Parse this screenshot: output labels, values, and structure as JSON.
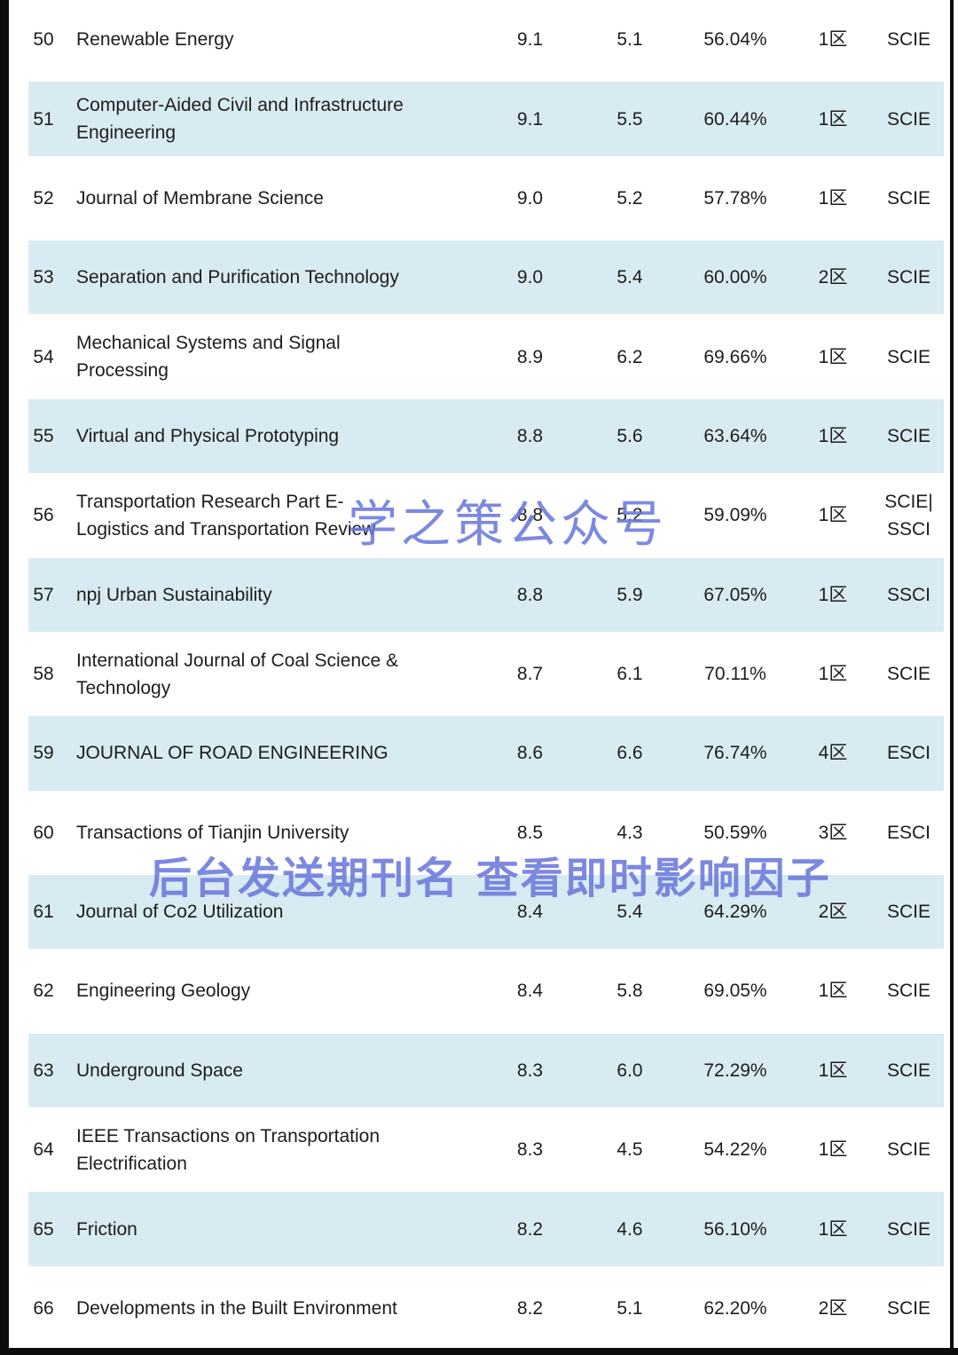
{
  "colors": {
    "row_stripe": "#d9ebf2",
    "watermark_blue": "#6b79dc",
    "border_black": "#0d0d0d",
    "text": "#1d1d1d"
  },
  "watermarks": {
    "center_text": "学之策公众号",
    "bottom_text": "后台发送期刊名 查看即时影响因子"
  },
  "table": {
    "rows": [
      {
        "rank": "50",
        "name": "Renewable Energy",
        "value1": "9.1",
        "value2": "5.1",
        "percent": "56.04%",
        "zone": "1区",
        "index": "SCIE"
      },
      {
        "rank": "51",
        "name": "Computer-Aided Civil and Infrastructure\nEngineering",
        "value1": "9.1",
        "value2": "5.5",
        "percent": "60.44%",
        "zone": "1区",
        "index": "SCIE"
      },
      {
        "rank": "52",
        "name": "Journal of Membrane Science",
        "value1": "9.0",
        "value2": "5.2",
        "percent": "57.78%",
        "zone": "1区",
        "index": "SCIE"
      },
      {
        "rank": "53",
        "name": "Separation and Purification Technology",
        "value1": "9.0",
        "value2": "5.4",
        "percent": "60.00%",
        "zone": "2区",
        "index": "SCIE"
      },
      {
        "rank": "54",
        "name": "Mechanical Systems and Signal\nProcessing",
        "value1": "8.9",
        "value2": "6.2",
        "percent": "69.66%",
        "zone": "1区",
        "index": "SCIE"
      },
      {
        "rank": "55",
        "name": "Virtual and Physical Prototyping",
        "value1": "8.8",
        "value2": "5.6",
        "percent": "63.64%",
        "zone": "1区",
        "index": "SCIE"
      },
      {
        "rank": "56",
        "name": "Transportation Research Part E-\nLogistics and Transportation Review",
        "value1": "8.8",
        "value2": "5.2",
        "percent": "59.09%",
        "zone": "1区",
        "index": "SCIE|\nSSCI"
      },
      {
        "rank": "57",
        "name": "npj Urban Sustainability",
        "value1": "8.8",
        "value2": "5.9",
        "percent": "67.05%",
        "zone": "1区",
        "index": "SSCI"
      },
      {
        "rank": "58",
        "name": "International Journal of Coal Science &\nTechnology",
        "value1": "8.7",
        "value2": "6.1",
        "percent": "70.11%",
        "zone": "1区",
        "index": "SCIE"
      },
      {
        "rank": "59",
        "name": "JOURNAL OF ROAD ENGINEERING",
        "value1": "8.6",
        "value2": "6.6",
        "percent": "76.74%",
        "zone": "4区",
        "index": "ESCI"
      },
      {
        "rank": "60",
        "name": "Transactions of Tianjin University",
        "value1": "8.5",
        "value2": "4.3",
        "percent": "50.59%",
        "zone": "3区",
        "index": "ESCI"
      },
      {
        "rank": "61",
        "name": "Journal of Co2 Utilization",
        "value1": "8.4",
        "value2": "5.4",
        "percent": "64.29%",
        "zone": "2区",
        "index": "SCIE"
      },
      {
        "rank": "62",
        "name": "Engineering Geology",
        "value1": "8.4",
        "value2": "5.8",
        "percent": "69.05%",
        "zone": "1区",
        "index": "SCIE"
      },
      {
        "rank": "63",
        "name": "Underground Space",
        "value1": "8.3",
        "value2": "6.0",
        "percent": "72.29%",
        "zone": "1区",
        "index": "SCIE"
      },
      {
        "rank": "64",
        "name": "IEEE Transactions on Transportation\nElectrification",
        "value1": "8.3",
        "value2": "4.5",
        "percent": "54.22%",
        "zone": "1区",
        "index": "SCIE"
      },
      {
        "rank": "65",
        "name": "Friction",
        "value1": "8.2",
        "value2": "4.6",
        "percent": "56.10%",
        "zone": "1区",
        "index": "SCIE"
      },
      {
        "rank": "66",
        "name": "Developments in the Built Environment",
        "value1": "8.2",
        "value2": "5.1",
        "percent": "62.20%",
        "zone": "2区",
        "index": "SCIE"
      }
    ]
  }
}
